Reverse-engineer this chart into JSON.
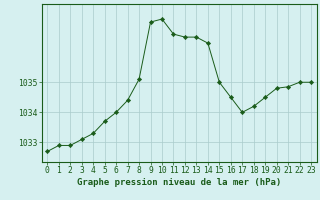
{
  "x": [
    0,
    1,
    2,
    3,
    4,
    5,
    6,
    7,
    8,
    9,
    10,
    11,
    12,
    13,
    14,
    15,
    16,
    17,
    18,
    19,
    20,
    21,
    22,
    23
  ],
  "y": [
    1032.7,
    1032.9,
    1032.9,
    1033.1,
    1033.3,
    1033.7,
    1034.0,
    1034.4,
    1035.1,
    1037.0,
    1037.1,
    1036.6,
    1036.5,
    1036.5,
    1036.3,
    1035.0,
    1034.5,
    1034.0,
    1034.2,
    1034.5,
    1034.8,
    1034.85,
    1035.0,
    1035.0
  ],
  "line_color": "#1a5c1a",
  "marker": "D",
  "marker_size": 2.2,
  "background_color": "#d6f0f0",
  "grid_color": "#aacccc",
  "xlabel": "Graphe pression niveau de la mer (hPa)",
  "yticks": [
    1033,
    1034,
    1035
  ],
  "ylim": [
    1032.35,
    1037.6
  ],
  "xlim": [
    -0.5,
    23.5
  ],
  "xticks": [
    0,
    1,
    2,
    3,
    4,
    5,
    6,
    7,
    8,
    9,
    10,
    11,
    12,
    13,
    14,
    15,
    16,
    17,
    18,
    19,
    20,
    21,
    22,
    23
  ],
  "xlabel_fontsize": 6.5,
  "tick_fontsize": 5.8
}
